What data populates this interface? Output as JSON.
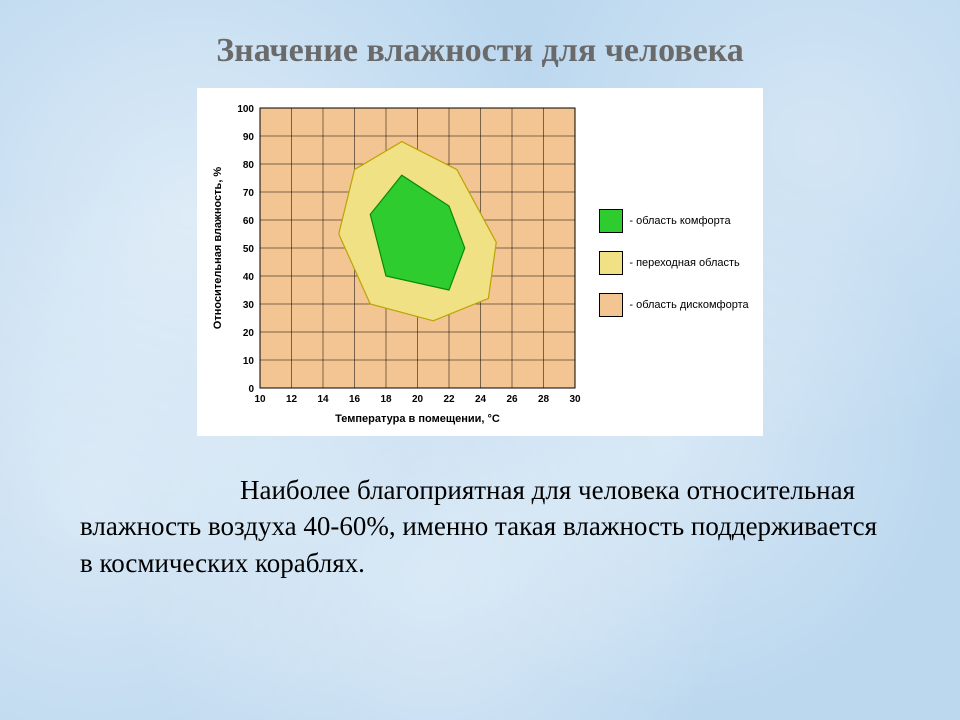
{
  "title": "Значение влажности для человека",
  "title_fontsize": 34,
  "title_color": "#6a6a6a",
  "background_color": "#bcd8ef",
  "chart": {
    "card_bg": "#ffffff",
    "plot_bg": "#f2c593",
    "grid_color": "#000000",
    "grid_stroke": 0.5,
    "border_stroke": 1,
    "x": {
      "label": "Температура в помещении, °С",
      "min": 10,
      "max": 30,
      "step": 2
    },
    "y": {
      "label": "Относительная влажность, %",
      "min": 0,
      "max": 100,
      "step": 10
    },
    "axis_label_fontsize": 11,
    "tick_fontsize": 10,
    "axis_font": "Arial",
    "trans_color": "#f0e184",
    "trans_stroke": "#bba400",
    "comfort_color": "#2ecc2e",
    "comfort_stroke": "#0a8a0a",
    "trans_poly": [
      [
        17,
        30
      ],
      [
        15,
        55
      ],
      [
        16,
        78
      ],
      [
        19,
        88
      ],
      [
        22.5,
        78
      ],
      [
        25,
        52
      ],
      [
        24.5,
        32
      ],
      [
        21,
        24
      ]
    ],
    "comfort_poly": [
      [
        18,
        40
      ],
      [
        17,
        62
      ],
      [
        19,
        76
      ],
      [
        22,
        65
      ],
      [
        23,
        50
      ],
      [
        22,
        35
      ]
    ]
  },
  "legend": {
    "fontsize": 11,
    "items": [
      {
        "color": "#2ecc2e",
        "label": "- область комфорта"
      },
      {
        "color": "#f0e184",
        "label": "- переходная область"
      },
      {
        "color": "#f2c593",
        "label": "- область дискомфорта"
      }
    ]
  },
  "body": {
    "fontsize": 27,
    "color": "#000000",
    "p1": "Наиболее благоприятная для человека относительная",
    "p2": "влажность воздуха 40-60%, именно такая влажность поддерживается в космических кораблях."
  }
}
